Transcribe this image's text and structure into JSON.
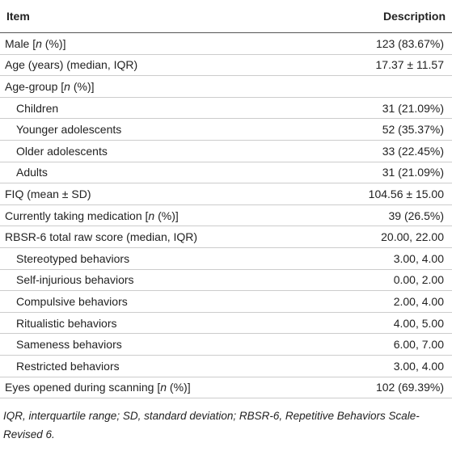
{
  "table": {
    "header": [
      "Item",
      "Description"
    ],
    "rows": [
      {
        "item": "Male [n (%)]",
        "description": "123 (83.67%)"
      },
      {
        "item": "Age (years) (median, IQR)",
        "description": "17.37 ± 11.57"
      },
      {
        "item": "Age-group [n (%)]",
        "description": null,
        "children": [
          {
            "item": "Children",
            "description": "31 (21.09%)"
          },
          {
            "item": "Younger adolescents",
            "description": "52 (35.37%)"
          },
          {
            "item": "Older adolescents",
            "description": "33 (22.45%)"
          },
          {
            "item": "Adults",
            "description": "31 (21.09%)"
          }
        ]
      },
      {
        "item": "FIQ (mean ± SD)",
        "description": "104.56 ± 15.00"
      },
      {
        "item": "Currently taking medication [n (%)]",
        "description": "39 (26.5%)"
      },
      {
        "item": "RBSR-6 total raw score (median, IQR)",
        "description": "20.00, 22.00",
        "children": [
          {
            "item": "Stereotyped behaviors",
            "description": "3.00, 4.00"
          },
          {
            "item": "Self-injurious behaviors",
            "description": "0.00, 2.00"
          },
          {
            "item": "Compulsive behaviors",
            "description": "2.00, 4.00"
          },
          {
            "item": "Ritualistic behaviors",
            "description": "4.00, 5.00"
          },
          {
            "item": "Sameness behaviors",
            "description": "6.00, 7.00"
          },
          {
            "item": "Restricted behaviors",
            "description": "3.00, 4.00"
          }
        ]
      },
      {
        "item": "Eyes opened during scanning [n (%)]",
        "description": "102 (69.39%)"
      }
    ],
    "footnote": "IQR, interquartile range; SD, standard deviation; RBSR-6, Repetitive Behaviors Scale-Revised 6."
  }
}
